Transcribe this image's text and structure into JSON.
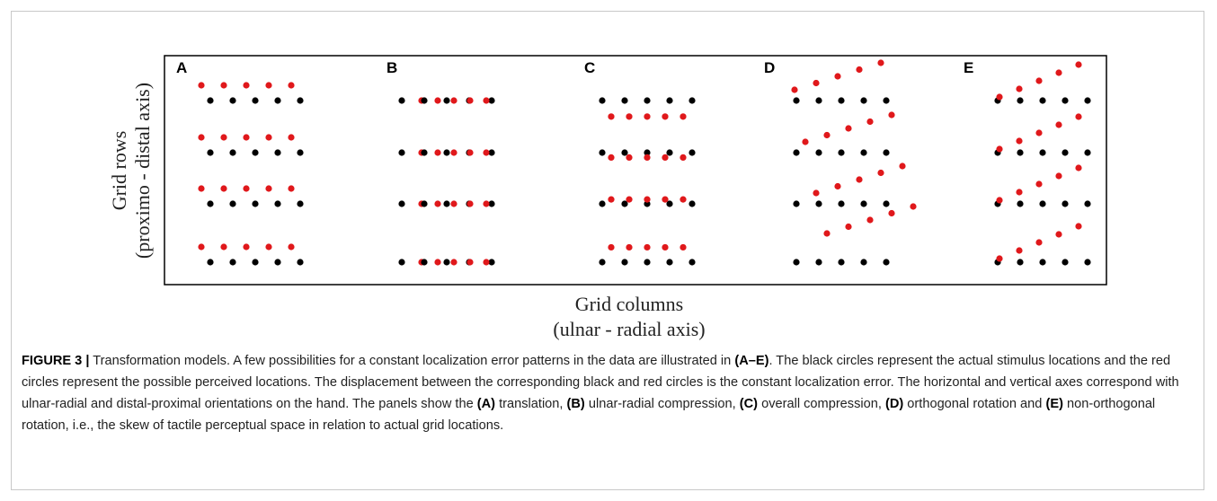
{
  "figure": {
    "panel_labels": [
      "A",
      "B",
      "C",
      "D",
      "E"
    ],
    "y_axis_label": [
      "Grid rows",
      "(proximo - distal axis)"
    ],
    "x_axis_label": [
      "Grid columns",
      "(ulnar - radial axis)"
    ],
    "caption": [
      "FIGURE 3 |",
      " Transformation models. A few possibilities for a constant localization error patterns in the data are illustrated in ",
      "(A–E)",
      ". The black circles represent the actual stimulus locations and the red circles represent the possible perceived locations. The displacement between the corresponding black and red circles is the constant localization error. The horizontal and vertical axes correspond with ulnar-radial and distal-proximal orientations on the hand. The panels show the ",
      "(A)",
      " translation, ",
      "(B)",
      " ulnar-radial compression, ",
      "(C)",
      " overall compression, ",
      "(D)",
      " orthogonal rotation and ",
      "(E)",
      " non-orthogonal rotation, i.e., the skew of tactile perceptual space in relation to actual grid locations."
    ]
  }
}
